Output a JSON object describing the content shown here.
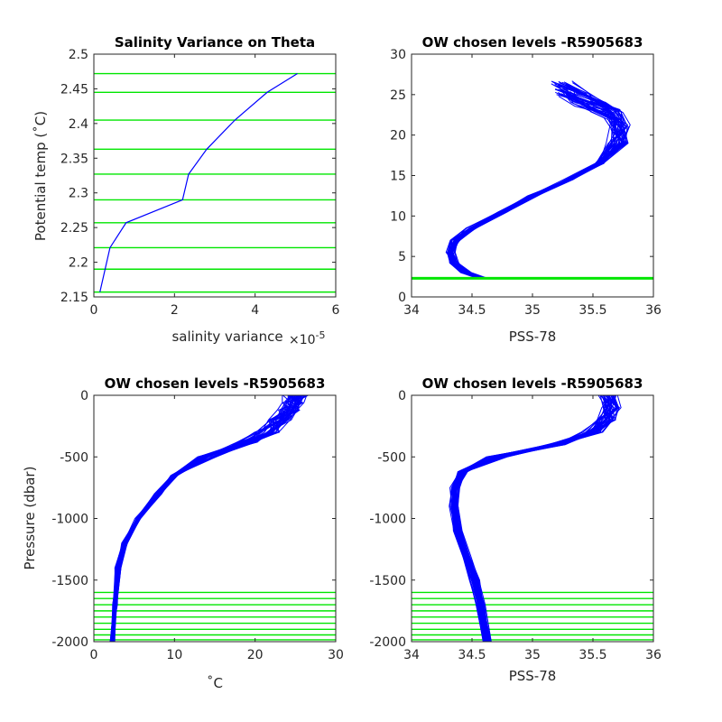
{
  "colors": {
    "profile": "#0000ff",
    "levels": "#00e600",
    "axis": "#262626"
  },
  "chart_data": [
    {
      "type": "line",
      "title": "Salinity Variance on Theta",
      "xlabel": "salinity variance",
      "x_exponent": "×10",
      "x_exponent_power": "-5",
      "ylabel": "Potential temp (˚C)",
      "xlim": [
        0,
        6
      ],
      "ylim": [
        2.15,
        2.5
      ],
      "xticks": [
        "0",
        "2",
        "4",
        "6"
      ],
      "yticks": [
        "2.15",
        "2.2",
        "2.25",
        "2.3",
        "2.35",
        "2.4",
        "2.45",
        "2.5"
      ],
      "series": [
        {
          "x_scaled_e5": [
            0.15,
            0.4,
            0.8,
            2.2,
            2.35,
            2.8,
            3.5,
            4.3,
            5.05
          ],
          "y": [
            2.157,
            2.221,
            2.257,
            2.29,
            2.327,
            2.363,
            2.405,
            2.445,
            2.472
          ]
        }
      ],
      "level_lines_y": [
        2.157,
        2.19,
        2.221,
        2.257,
        2.29,
        2.327,
        2.363,
        2.405,
        2.445,
        2.472
      ]
    },
    {
      "type": "line",
      "title": "OW chosen levels -R5905683",
      "xlabel": "PSS-78",
      "ylabel": "",
      "xlim": [
        34,
        36
      ],
      "ylim": [
        0,
        30
      ],
      "xticks": [
        "34",
        "34.5",
        "35",
        "35.5",
        "36"
      ],
      "yticks": [
        "0",
        "5",
        "10",
        "15",
        "20",
        "25",
        "30"
      ],
      "profile_shape": {
        "salinity": [
          34.58,
          34.45,
          34.35,
          34.32,
          34.36,
          34.5,
          34.75,
          35.0,
          35.3,
          35.55,
          35.7,
          35.72,
          35.68,
          35.55,
          35.4,
          35.25
        ],
        "theta": [
          2.3,
          3.0,
          4.2,
          5.5,
          7.0,
          8.5,
          10.5,
          12.5,
          14.5,
          16.5,
          19.0,
          21.0,
          22.5,
          23.5,
          24.5,
          25.8
        ]
      },
      "profile_count": 40,
      "level_band_y": [
        2.15,
        2.47
      ]
    },
    {
      "type": "line",
      "title": "OW chosen levels -R5905683",
      "xlabel": "˚C",
      "ylabel": "Pressure (dbar)",
      "xlim": [
        0,
        30
      ],
      "ylim": [
        -2000,
        0
      ],
      "xticks": [
        "0",
        "10",
        "20",
        "30"
      ],
      "yticks": [
        "-2000",
        "-1500",
        "-1000",
        "-500",
        "0"
      ],
      "profile_shape": {
        "temperature": [
          2.3,
          2.6,
          3.0,
          3.8,
          5.5,
          8.0,
          10.0,
          14.0,
          19.0,
          21.5,
          23.0,
          24.0,
          24.5,
          25.0
        ],
        "pressure": [
          -2000,
          -1700,
          -1400,
          -1200,
          -1000,
          -800,
          -650,
          -500,
          -380,
          -300,
          -200,
          -120,
          -60,
          0
        ]
      },
      "profile_count": 40,
      "level_lines_y": [
        -1985,
        -1945,
        -1900,
        -1850,
        -1800,
        -1750,
        -1700,
        -1650,
        -1600
      ]
    },
    {
      "type": "line",
      "title": "OW chosen levels -R5905683",
      "xlabel": "PSS-78",
      "ylabel": "",
      "xlim": [
        34,
        36
      ],
      "ylim": [
        -2000,
        0
      ],
      "xticks": [
        "34",
        "34.5",
        "35",
        "35.5",
        "36"
      ],
      "yticks": [
        "-2000",
        "-1500",
        "-1000",
        "-500",
        "0"
      ],
      "profile_shape": {
        "salinity": [
          34.62,
          34.57,
          34.52,
          34.45,
          34.38,
          34.35,
          34.36,
          34.42,
          34.7,
          35.2,
          35.5,
          35.6,
          35.65,
          35.62
        ],
        "pressure": [
          -2000,
          -1700,
          -1500,
          -1300,
          -1100,
          -900,
          -750,
          -620,
          -500,
          -400,
          -300,
          -200,
          -100,
          0
        ]
      },
      "profile_count": 40,
      "level_lines_y": [
        -1985,
        -1945,
        -1900,
        -1850,
        -1800,
        -1750,
        -1700,
        -1650,
        -1600
      ]
    }
  ]
}
